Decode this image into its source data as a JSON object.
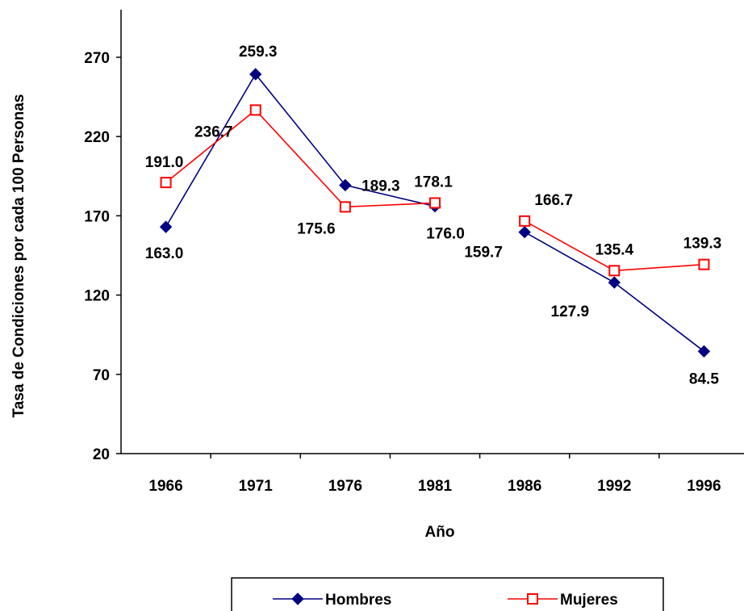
{
  "chart_data": {
    "type": "line",
    "title": "",
    "xlabel": "Año",
    "ylabel": "Tasa de Condiciones por cada 100 Personas",
    "categories": [
      "1966",
      "1971",
      "1976",
      "1981",
      "1986",
      "1992",
      "1996"
    ],
    "segments": [
      [
        0,
        3
      ],
      [
        4,
        6
      ]
    ],
    "ylim": [
      20,
      300
    ],
    "yticks": [
      20,
      70,
      120,
      170,
      220,
      270
    ],
    "grid": false,
    "legend_position": "bottom",
    "series": [
      {
        "name": "Hombres",
        "values": [
          163.0,
          259.3,
          189.3,
          176.0,
          159.7,
          127.9,
          84.5
        ],
        "labels": [
          "163.0",
          "259.3",
          "189.3",
          "176.0",
          "159.7",
          "127.9",
          "84.5"
        ],
        "color": "#000080",
        "marker": "diamond-icon"
      },
      {
        "name": "Mujeres",
        "values": [
          191.0,
          236.7,
          175.6,
          178.1,
          166.7,
          135.4,
          139.3
        ],
        "labels": [
          "191.0",
          "236.7",
          "175.6",
          "178.1",
          "166.7",
          "135.4",
          "139.3"
        ],
        "color": "#ff0000",
        "marker": "square-icon"
      }
    ]
  }
}
